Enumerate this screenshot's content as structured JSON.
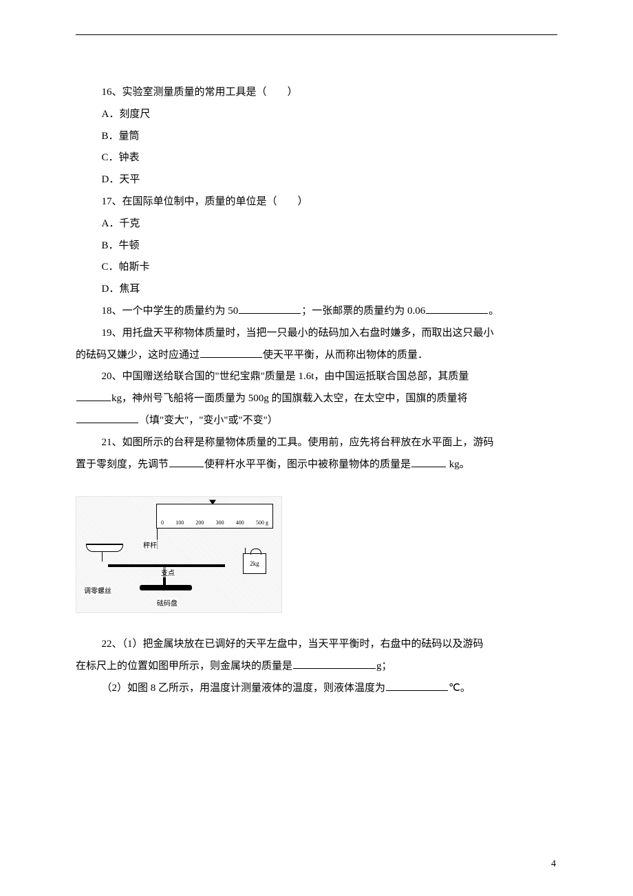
{
  "q16": {
    "stem": "16、实验室测量质量的常用工具是（　　）",
    "opts": {
      "A": "A．刻度尺",
      "B": "B．量筒",
      "C": "C．钟表",
      "D": "D．天平"
    }
  },
  "q17": {
    "stem": "17、在国际单位制中，质量的单位是（　　）",
    "opts": {
      "A": "A．千克",
      "B": "B．牛顿",
      "C": "C．帕斯卡",
      "D": "D．焦耳"
    }
  },
  "q18": {
    "a": "18、一个中学生的质量约为 50",
    "b": "；一张邮票的质量约为 0.06",
    "c": "。"
  },
  "q19": {
    "a": "19、用托盘天平称物体质量时，当把一只最小的砝码加入右盘时嫌多，而取出这只最小",
    "b": "的砝码又嫌少，这时应通过",
    "c": "使天平平衡，从而称出物体的质量．"
  },
  "q20": {
    "a": "20、中国赠送给联合国的\"世纪宝鼎\"质量是 1.6t，由中国运抵联合国总部，其质量",
    "b": "kg，神州号飞船将一面质量为 500g 的国旗载入太空，在太空中，国旗的质量将",
    "c": "（填\"变大\"，\"变小\"或\"不变\"）"
  },
  "q21": {
    "a": "21、如图所示的台秤是称量物体质量的工具。使用前，应先将台秤放在水平面上，游码",
    "b": "置于零刻度，先调节",
    "c": "使秤杆水平平衡，图示中被称量物体的质量是",
    "d": " kg。"
  },
  "q22": {
    "a": "22、（1）把金属块放在已调好的天平左盘中，当天平平衡时，右盘中的砝码以及游码",
    "b": "在标尺上的位置如图甲所示，则金属块的质量是",
    "c": "g；",
    "d": "（2）如图 8 乙所示，用温度计测量液体的温度，则液体温度为",
    "e": "℃。"
  },
  "figure": {
    "ruler_ticks": [
      "0",
      "100",
      "200",
      "300",
      "400",
      "500 g"
    ],
    "weight_label": "2kg",
    "lbl_gan": "秤杆",
    "lbl_zhi": "支点",
    "lbl_tiao": "调零螺丝",
    "lbl_ma": "砝码盘"
  },
  "page_number": "4",
  "colors": {
    "text": "#000000",
    "bg": "#ffffff"
  }
}
